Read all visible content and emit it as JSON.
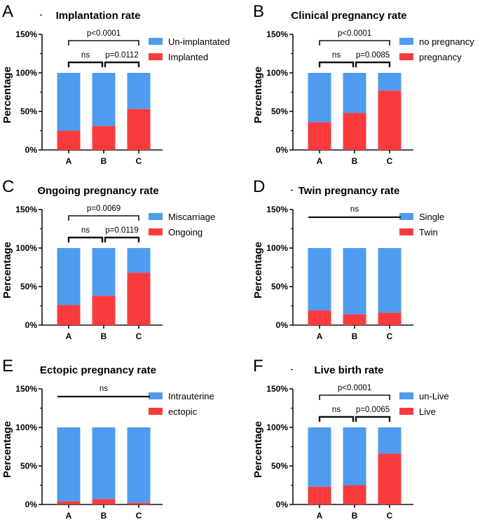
{
  "colors": {
    "top": "#4f9bf0",
    "bottom": "#f93b3e",
    "axis": "#111111"
  },
  "chart_data": [
    {
      "letter": "A",
      "type": "bar",
      "stacked": true,
      "title": "Implantation rate",
      "ylabel": "Percentage",
      "ylim": [
        0,
        150
      ],
      "yticks": [
        "0%",
        "50%",
        "100%",
        "150%"
      ],
      "categories": [
        "A",
        "B",
        "C"
      ],
      "series": [
        {
          "name": "Implanted",
          "values": [
            25,
            31,
            53
          ]
        },
        {
          "name": "Un-implantated",
          "values": [
            75,
            69,
            47
          ]
        }
      ],
      "legend": [
        "Un-implantated",
        "Implanted"
      ],
      "annotations": [
        {
          "from": "A",
          "to": "C",
          "label": "p<0.0001",
          "level": 2
        },
        {
          "from": "A",
          "to": "B",
          "label": "ns",
          "level": 1
        },
        {
          "from": "B",
          "to": "C",
          "label": "p=0.0112",
          "level": 1
        }
      ]
    },
    {
      "letter": "B",
      "type": "bar",
      "stacked": true,
      "title": "Clinical pregnancy rate",
      "ylabel": "Percentage",
      "ylim": [
        0,
        150
      ],
      "yticks": [
        "0%",
        "50%",
        "100%",
        "150%"
      ],
      "categories": [
        "A",
        "B",
        "C"
      ],
      "series": [
        {
          "name": "pregnancy",
          "values": [
            36,
            48,
            77
          ]
        },
        {
          "name": "no pregnancy",
          "values": [
            64,
            52,
            23
          ]
        }
      ],
      "legend": [
        "no pregnancy",
        "pregnancy"
      ],
      "annotations": [
        {
          "from": "A",
          "to": "C",
          "label": "p<0.0001",
          "level": 2
        },
        {
          "from": "A",
          "to": "B",
          "label": "ns",
          "level": 1
        },
        {
          "from": "B",
          "to": "C",
          "label": "p=0.0085",
          "level": 1
        }
      ]
    },
    {
      "letter": "C",
      "type": "bar",
      "stacked": true,
      "title": "Ongoing pregnancy rate",
      "ylabel": "Percentage",
      "ylim": [
        0,
        150
      ],
      "yticks": [
        "0%",
        "50%",
        "100%",
        "150%"
      ],
      "categories": [
        "A",
        "B",
        "C"
      ],
      "series": [
        {
          "name": "Ongoing",
          "values": [
            26,
            38,
            68
          ]
        },
        {
          "name": "Miscarriage",
          "values": [
            74,
            62,
            32
          ]
        }
      ],
      "legend": [
        "Miscarriage",
        "Ongoing"
      ],
      "annotations": [
        {
          "from": "A",
          "to": "C",
          "label": "p=0.0069",
          "level": 2
        },
        {
          "from": "A",
          "to": "B",
          "label": "ns",
          "level": 1
        },
        {
          "from": "B",
          "to": "C",
          "label": "p=0.0119",
          "level": 1
        }
      ]
    },
    {
      "letter": "D",
      "type": "bar",
      "stacked": true,
      "title": "Twin pregnancy rate",
      "ylabel": "Percentage",
      "ylim": [
        0,
        150
      ],
      "yticks": [
        "0%",
        "50%",
        "100%",
        "150%"
      ],
      "categories": [
        "A",
        "B",
        "C"
      ],
      "series": [
        {
          "name": "Twin",
          "values": [
            19,
            14,
            16
          ]
        },
        {
          "name": "Single",
          "values": [
            81,
            86,
            84
          ]
        }
      ],
      "legend": [
        "Single",
        "Twin"
      ],
      "annotations": [
        {
          "from": "A",
          "to": "C",
          "label": "ns",
          "level": 0
        }
      ]
    },
    {
      "letter": "E",
      "type": "bar",
      "stacked": true,
      "title": "Ectopic pregnancy rate",
      "ylabel": "Percentage",
      "ylim": [
        0,
        150
      ],
      "yticks": [
        "0%",
        "50%",
        "100%",
        "150%"
      ],
      "categories": [
        "A",
        "B",
        "C"
      ],
      "series": [
        {
          "name": "ectopic",
          "values": [
            4,
            7,
            2
          ]
        },
        {
          "name": "Intrauterine",
          "values": [
            96,
            93,
            98
          ]
        }
      ],
      "legend": [
        "Intrauterine",
        "ectopic"
      ],
      "annotations": [
        {
          "from": "A",
          "to": "C",
          "label": "ns",
          "level": 0
        }
      ]
    },
    {
      "letter": "F",
      "type": "bar",
      "stacked": true,
      "title": "Live birth rate",
      "ylabel": "Percentage",
      "ylim": [
        0,
        150
      ],
      "yticks": [
        "0%",
        "50%",
        "100%",
        "150%"
      ],
      "categories": [
        "A",
        "B",
        "C"
      ],
      "series": [
        {
          "name": "Live",
          "values": [
            23,
            25,
            66
          ]
        },
        {
          "name": "un-Live",
          "values": [
            77,
            75,
            34
          ]
        }
      ],
      "legend": [
        "un-Live",
        "Live"
      ],
      "annotations": [
        {
          "from": "A",
          "to": "C",
          "label": "p<0.0001",
          "level": 2
        },
        {
          "from": "A",
          "to": "B",
          "label": "ns",
          "level": 1
        },
        {
          "from": "B",
          "to": "C",
          "label": "p=0.0065",
          "level": 1
        }
      ]
    }
  ]
}
